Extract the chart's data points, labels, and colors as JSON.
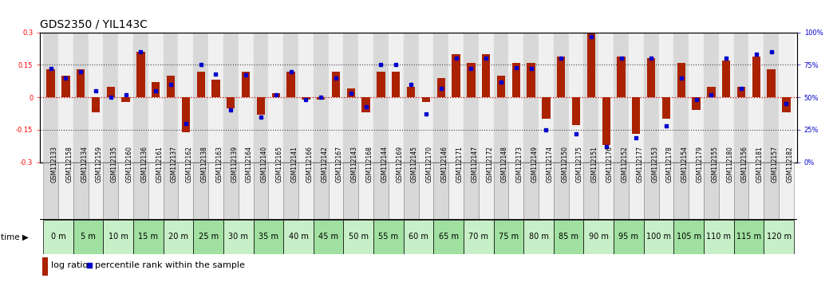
{
  "title": "GDS2350 / YIL143C",
  "samples": [
    "GSM112133",
    "GSM112158",
    "GSM112134",
    "GSM112159",
    "GSM112135",
    "GSM112160",
    "GSM112136",
    "GSM112161",
    "GSM112137",
    "GSM112162",
    "GSM112138",
    "GSM112163",
    "GSM112139",
    "GSM112164",
    "GSM112140",
    "GSM112165",
    "GSM112141",
    "GSM112166",
    "GSM112142",
    "GSM112167",
    "GSM112143",
    "GSM112168",
    "GSM112144",
    "GSM112169",
    "GSM112145",
    "GSM112170",
    "GSM112146",
    "GSM112171",
    "GSM112147",
    "GSM112172",
    "GSM112148",
    "GSM112173",
    "GSM112149",
    "GSM112174",
    "GSM112150",
    "GSM112175",
    "GSM112151",
    "GSM112176",
    "GSM112152",
    "GSM112177",
    "GSM112153",
    "GSM112178",
    "GSM112154",
    "GSM112179",
    "GSM112155",
    "GSM112180",
    "GSM112156",
    "GSM112181",
    "GSM112157",
    "GSM112182"
  ],
  "log_ratio": [
    0.13,
    0.1,
    0.13,
    -0.07,
    0.05,
    -0.02,
    0.21,
    0.07,
    0.1,
    -0.16,
    0.12,
    0.08,
    -0.05,
    0.12,
    -0.08,
    0.02,
    0.12,
    -0.01,
    -0.01,
    0.12,
    0.04,
    -0.07,
    0.12,
    0.12,
    0.05,
    -0.02,
    0.09,
    0.2,
    0.16,
    0.2,
    0.1,
    0.16,
    0.16,
    -0.1,
    0.19,
    -0.13,
    0.36,
    -0.22,
    0.19,
    -0.17,
    0.18,
    -0.1,
    0.16,
    -0.06,
    0.05,
    0.17,
    0.05,
    0.19,
    0.13,
    -0.07
  ],
  "percentile": [
    72,
    65,
    70,
    55,
    50,
    52,
    85,
    55,
    60,
    30,
    75,
    68,
    40,
    67,
    35,
    52,
    70,
    48,
    50,
    65,
    53,
    43,
    75,
    75,
    60,
    37,
    57,
    80,
    72,
    80,
    62,
    73,
    72,
    25,
    80,
    22,
    97,
    12,
    80,
    19,
    80,
    28,
    65,
    48,
    52,
    80,
    57,
    83,
    85,
    45
  ],
  "time_labels": [
    "0 m",
    "5 m",
    "10 m",
    "15 m",
    "20 m",
    "25 m",
    "30 m",
    "35 m",
    "40 m",
    "45 m",
    "50 m",
    "55 m",
    "60 m",
    "65 m",
    "70 m",
    "75 m",
    "80 m",
    "85 m",
    "90 m",
    "95 m",
    "100 m",
    "105 m",
    "110 m",
    "115 m",
    "120 m"
  ],
  "ylim": [
    -0.3,
    0.3
  ],
  "y2lim": [
    0,
    100
  ],
  "bar_color": "#aa2200",
  "dot_color": "#0000cc",
  "zero_line_color": "#cc0000",
  "dotted_line_color": "#444444",
  "sample_bg_even": "#d8d8d8",
  "sample_bg_odd": "#f0f0f0",
  "time_bg_light": "#c8f0c8",
  "time_bg_dark": "#a0e0a0",
  "background_color": "#ffffff",
  "title_fontsize": 10,
  "tick_fontsize": 6,
  "sample_fontsize": 5.5,
  "time_fontsize": 7,
  "legend_fontsize": 8
}
